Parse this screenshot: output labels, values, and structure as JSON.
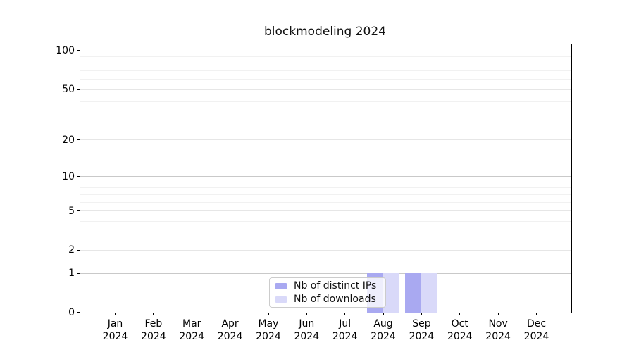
{
  "title": "blockmodeling 2024",
  "chart_data": {
    "type": "bar",
    "title": "blockmodeling 2024",
    "categories": [
      "Jan",
      "Feb",
      "Mar",
      "Apr",
      "May",
      "Jun",
      "Jul",
      "Aug",
      "Sep",
      "Oct",
      "Nov",
      "Dec"
    ],
    "category_year": "2024",
    "series": [
      {
        "name": "Nb of distinct IPs",
        "color": "#a9a9f1",
        "values": [
          0,
          0,
          0,
          0,
          0,
          0,
          0,
          1,
          1,
          0,
          0,
          0
        ]
      },
      {
        "name": "Nb of downloads",
        "color": "#d9d9f9",
        "values": [
          0,
          0,
          0,
          0,
          0,
          0,
          0,
          1,
          1,
          0,
          0,
          0
        ]
      }
    ],
    "yscale": "symlog",
    "ylim": [
      0,
      112
    ],
    "y_major_ticks": [
      0,
      1,
      2,
      5,
      10,
      20,
      50,
      100
    ],
    "y_minor_ticks": [
      3,
      4,
      6,
      7,
      8,
      9,
      30,
      40,
      60,
      70,
      80,
      90
    ],
    "decade_ticks": [
      1,
      10,
      100
    ],
    "xlabel": "",
    "ylabel": "",
    "grid": "on",
    "legend_position": "lower-center-inside"
  }
}
